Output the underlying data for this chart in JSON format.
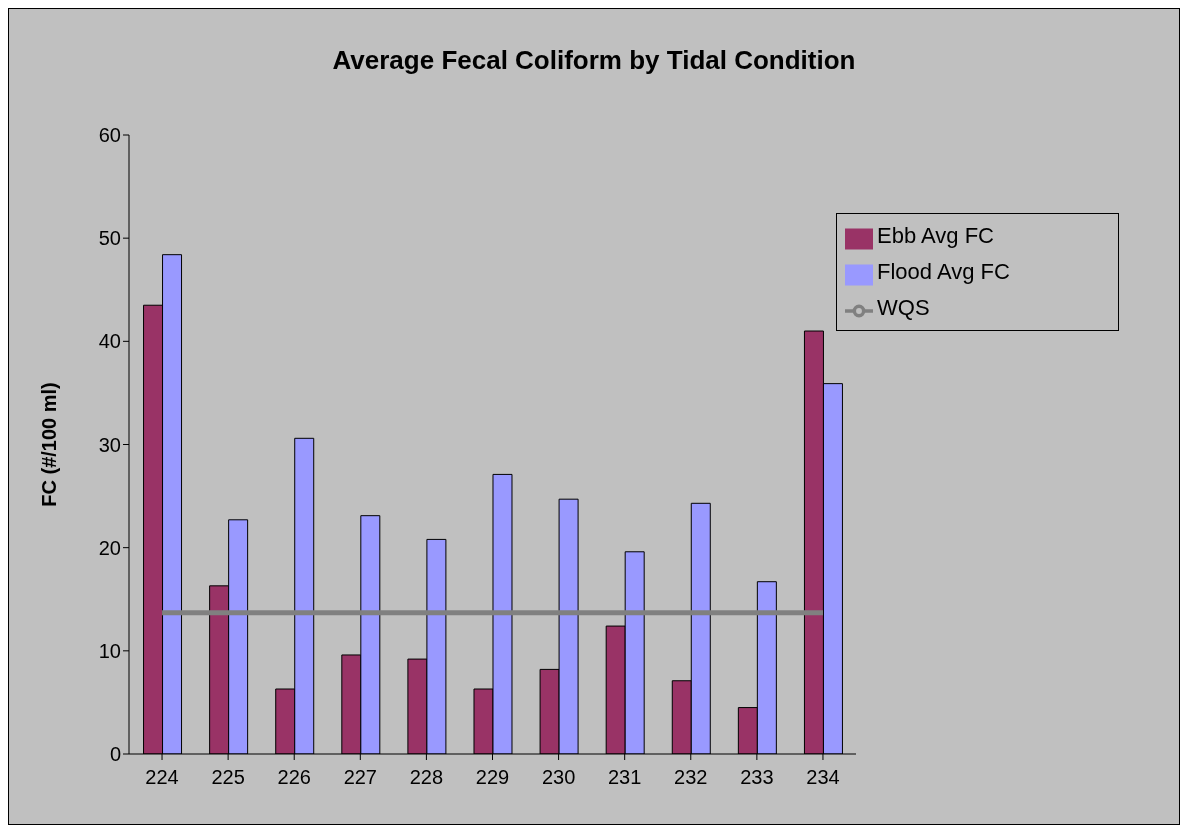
{
  "chart_data": {
    "type": "bar",
    "title": "Average Fecal Coliform by Tidal Condition",
    "ylabel": "FC (#/100 ml)",
    "categories": [
      "224",
      "225",
      "226",
      "227",
      "228",
      "229",
      "230",
      "231",
      "232",
      "233",
      "234"
    ],
    "series": [
      {
        "name": "Ebb Avg FC",
        "color": "#993366",
        "values": [
          43.5,
          16.3,
          6.3,
          9.6,
          9.2,
          6.3,
          8.2,
          12.4,
          7.1,
          4.5,
          41.0
        ]
      },
      {
        "name": "Flood Avg FC",
        "color": "#9999ff",
        "values": [
          48.4,
          22.7,
          30.6,
          23.1,
          20.8,
          27.1,
          24.7,
          19.6,
          24.3,
          16.7,
          35.9
        ]
      },
      {
        "name": "WQS",
        "type": "line",
        "color": "#808080",
        "values": [
          13.7,
          13.7,
          13.7,
          13.7,
          13.7,
          13.7,
          13.7,
          13.7,
          13.7,
          13.7,
          13.7
        ]
      }
    ],
    "ylim": [
      0,
      60
    ],
    "yticks": [
      0,
      10,
      20,
      30,
      40,
      50,
      60
    ],
    "grid": false,
    "legend": "top right"
  }
}
